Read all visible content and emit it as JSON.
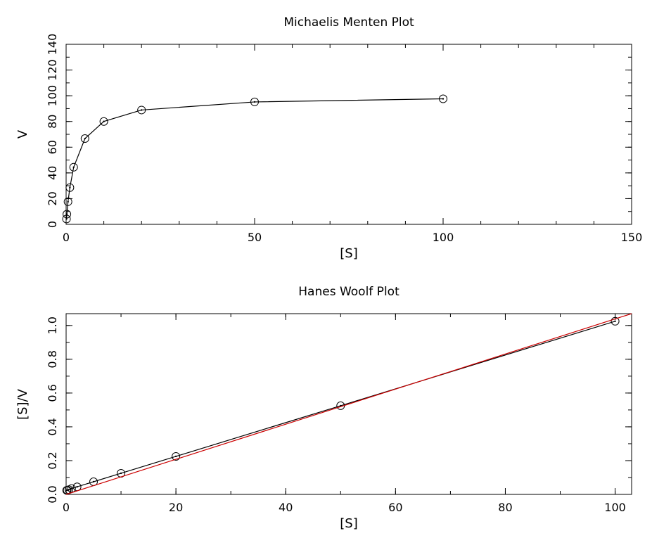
{
  "chart_data": [
    {
      "type": "line",
      "title": "Michaelis Menten Plot",
      "xlabel": "[S]",
      "ylabel": "V",
      "xlim": [
        0,
        150
      ],
      "ylim": [
        0,
        140
      ],
      "xticks": [
        0,
        50,
        100,
        150
      ],
      "yticks": [
        0,
        20,
        40,
        60,
        80,
        100,
        120,
        140
      ],
      "x_minor_step": 10,
      "y_minor_step": 10,
      "grid": false,
      "series": [
        {
          "color": "#000000",
          "marker": "circle-dot",
          "x": [
            0.1,
            0.2,
            0.5,
            1,
            2,
            5,
            10,
            20,
            50,
            100
          ],
          "y": [
            4.2,
            7.9,
            17.6,
            28.6,
            44.4,
            66.7,
            80.0,
            88.9,
            95.2,
            97.6
          ]
        }
      ]
    },
    {
      "type": "line",
      "title": "Hanes Woolf Plot",
      "xlabel": "[S]",
      "ylabel": "[S]/V",
      "xlim": [
        0,
        103
      ],
      "ylim": [
        0,
        1.07
      ],
      "xticks": [
        0,
        20,
        40,
        60,
        80,
        100
      ],
      "yticks": [
        0.0,
        0.2,
        0.4,
        0.6,
        0.8,
        1.0
      ],
      "x_minor_step": 10,
      "y_minor_step": 0.1,
      "grid": false,
      "series": [
        {
          "color": "#000000",
          "marker": "circle-dot",
          "x": [
            0.1,
            0.2,
            0.5,
            1,
            2,
            5,
            10,
            20,
            50,
            100
          ],
          "y": [
            0.024,
            0.025,
            0.028,
            0.035,
            0.045,
            0.075,
            0.125,
            0.225,
            0.525,
            1.025
          ]
        },
        {
          "color": "#cc0000",
          "marker": "none",
          "x": [
            0,
            103
          ],
          "y": [
            0,
            1.07
          ]
        }
      ]
    }
  ]
}
